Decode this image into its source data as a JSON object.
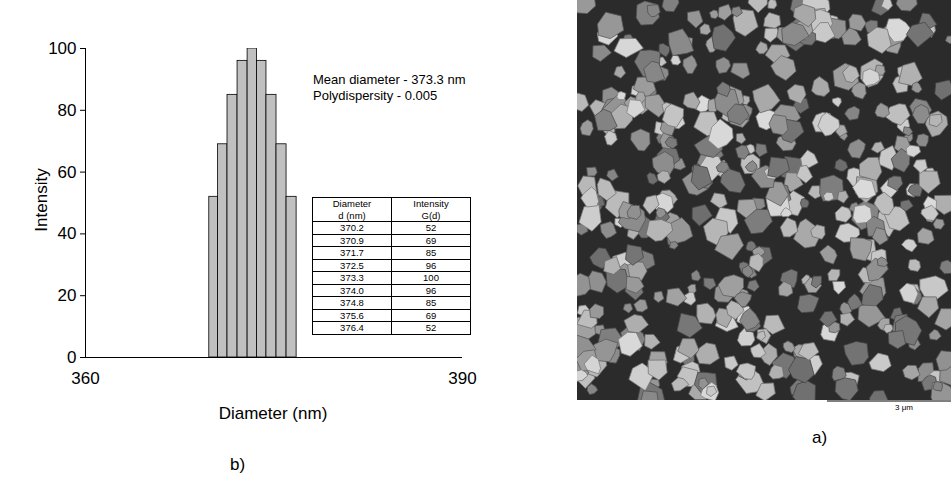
{
  "chart_data": {
    "type": "bar",
    "panel_label": "b)",
    "x_label": "Diameter (nm)",
    "y_label": "Intensity",
    "x": [
      370.2,
      370.9,
      371.7,
      372.5,
      373.3,
      374.0,
      374.8,
      375.6,
      376.4
    ],
    "values": [
      52,
      69,
      85,
      96,
      100,
      96,
      85,
      69,
      52
    ],
    "color": "#c0c0c0",
    "xlim": [
      360,
      390
    ],
    "xticks": [
      360,
      390
    ],
    "ylim": [
      0,
      100
    ],
    "yticks": [
      0,
      20,
      40,
      60,
      80,
      100
    ],
    "grid": false,
    "annotations": [
      "Mean diameter - 373.3 nm",
      "Polydispersity - 0.005"
    ],
    "table": {
      "columns": [
        [
          "Diameter",
          "d (nm)"
        ],
        [
          "Intensity",
          "G(d)"
        ]
      ],
      "rows": [
        [
          "370.2",
          "52"
        ],
        [
          "370.9",
          "69"
        ],
        [
          "371.7",
          "85"
        ],
        [
          "372.5",
          "96"
        ],
        [
          "373.3",
          "100"
        ],
        [
          "374.0",
          "96"
        ],
        [
          "374.8",
          "85"
        ],
        [
          "375.6",
          "69"
        ],
        [
          "376.4",
          "52"
        ]
      ]
    }
  },
  "image": {
    "panel_label": "a)",
    "scale_bar": "3 μm"
  }
}
